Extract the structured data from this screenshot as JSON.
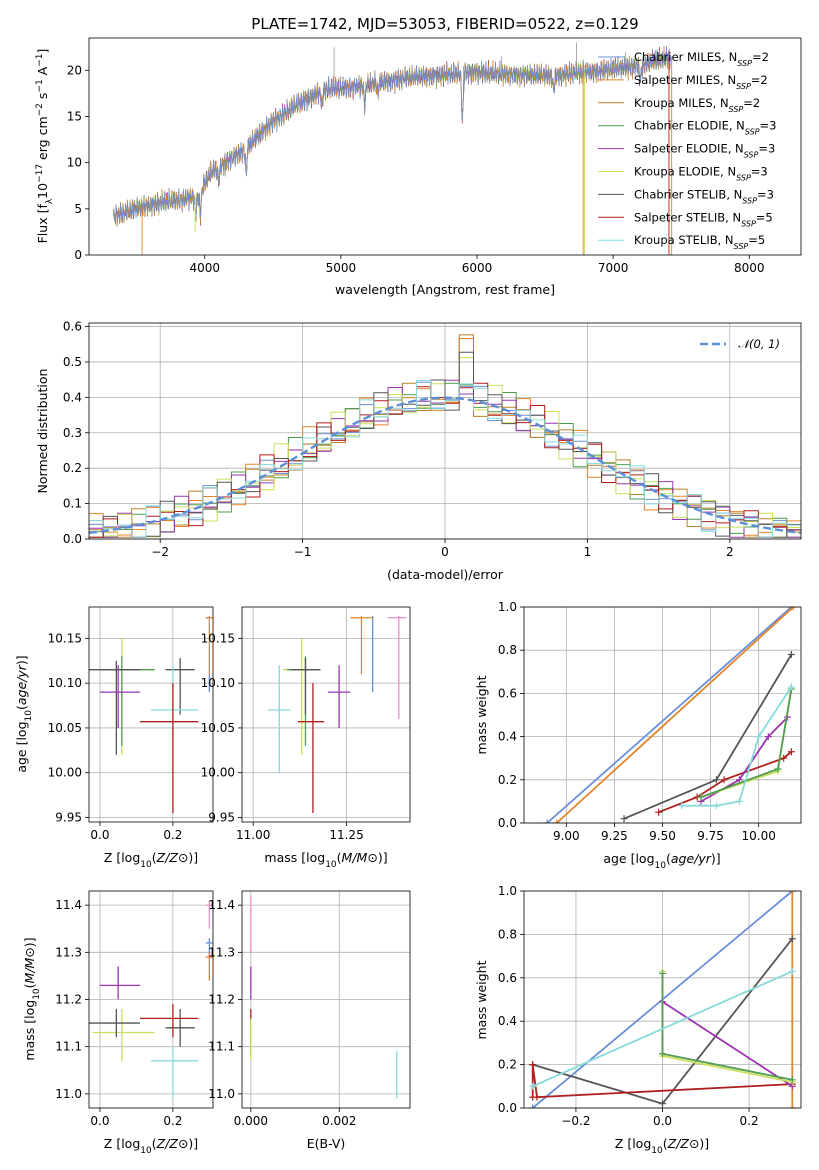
{
  "figure_title": "PLATE=1742, MJD=53053, FIBERID=0522, z=0.129",
  "colors": {
    "Chabrier MILES": "#6a8fd8",
    "Salpeter MILES": "#e4852c",
    "Kroupa MILES": "#b8802a",
    "Chabrier ELODIE": "#4f9c52",
    "Salpeter ELODIE": "#9a35b0",
    "Kroupa ELODIE": "#c8e05a",
    "Chabrier STELIB": "#555555",
    "Salpeter STELIB": "#b01e1e",
    "Kroupa STELIB": "#86dada",
    "normal": "#5b8fd6",
    "pink": "#e890c8"
  },
  "chart_data": [
    {
      "id": "spectrum",
      "type": "line",
      "title": "PLATE=1742, MJD=53053, FIBERID=0522, z=0.129",
      "xlabel": "wavelength [Angstrom, rest frame]",
      "ylabel": "Flux [f_λ 10^-17 erg cm^-2 s^-1 A^-1]",
      "xlim": [
        3150,
        8380
      ],
      "ylim": [
        0,
        23.5
      ],
      "xticks": [
        4000,
        5000,
        6000,
        7000,
        8000
      ],
      "yticks": [
        0,
        5,
        10,
        15,
        20
      ],
      "grid": false,
      "legend_position": "top-right",
      "legend": [
        {
          "base": "Chabrier MILES, N",
          "sub": "SSP",
          "tail": "=2"
        },
        {
          "base": "Salpeter MILES, N",
          "sub": "SSP",
          "tail": "=2"
        },
        {
          "base": "Kroupa MILES, N",
          "sub": "SSP",
          "tail": "=2"
        },
        {
          "base": "Chabrier ELODIE, N",
          "sub": "SSP",
          "tail": "=3"
        },
        {
          "base": "Salpeter ELODIE, N",
          "sub": "SSP",
          "tail": "=3"
        },
        {
          "base": "Kroupa ELODIE, N",
          "sub": "SSP",
          "tail": "=3"
        },
        {
          "base": "Chabrier STELIB, N",
          "sub": "SSP",
          "tail": "=3"
        },
        {
          "base": "Salpeter STELIB, N",
          "sub": "SSP",
          "tail": "=5"
        },
        {
          "base": "Kroupa STELIB, N",
          "sub": "SSP",
          "tail": "=5"
        }
      ],
      "continuum": [
        [
          3330,
          4.2
        ],
        [
          3500,
          5.0
        ],
        [
          3700,
          5.8
        ],
        [
          3850,
          6.0
        ],
        [
          3950,
          6.5
        ],
        [
          4050,
          9.0
        ],
        [
          4300,
          11.5
        ],
        [
          4500,
          14.5
        ],
        [
          4700,
          16.5
        ],
        [
          4900,
          18.0
        ],
        [
          5100,
          18.2
        ],
        [
          5400,
          19.0
        ],
        [
          5700,
          19.5
        ],
        [
          6000,
          19.8
        ],
        [
          6300,
          19.5
        ],
        [
          6600,
          19.5
        ],
        [
          6800,
          19.8
        ],
        [
          7000,
          20.2
        ],
        [
          7200,
          20.5
        ],
        [
          7300,
          21.0
        ],
        [
          7420,
          21.5
        ]
      ],
      "absorption": [
        [
          3934,
          2.0
        ],
        [
          3968,
          2.5
        ],
        [
          4102,
          1.5
        ],
        [
          4304,
          2.5
        ],
        [
          4861,
          1.5
        ],
        [
          5175,
          2.0
        ],
        [
          5270,
          1.0
        ],
        [
          5893,
          5.0
        ],
        [
          6563,
          1.5
        ],
        [
          7200,
          1.5
        ]
      ],
      "emission_spikes": [
        [
          4150,
          8.5
        ],
        [
          4950,
          22.5
        ],
        [
          5900,
          20.5
        ],
        [
          6180,
          21.5
        ],
        [
          6730,
          23.0
        ],
        [
          7090,
          22.0
        ]
      ],
      "model_drops": [
        {
          "model": "Salpeter MILES",
          "x": 3540,
          "to": 0
        },
        {
          "model": "Kroupa ELODIE",
          "x": 3930,
          "to": 2.5
        },
        {
          "model": "Salpeter MILES",
          "x": 6780,
          "to": 0
        },
        {
          "model": "Kroupa ELODIE",
          "x": 6790,
          "to": 0
        },
        {
          "model": "Salpeter STELIB",
          "x": 7410,
          "to": 0
        },
        {
          "model": "Salpeter MILES",
          "x": 7430,
          "to": 0
        }
      ]
    },
    {
      "id": "residuals",
      "type": "histogram",
      "xlabel": "(data-model)/error",
      "ylabel": "Normed distribution",
      "xlim": [
        -2.5,
        2.5
      ],
      "ylim": [
        0,
        0.61
      ],
      "xticks": [
        -2,
        -1,
        0,
        1,
        2
      ],
      "yticks": [
        0.0,
        0.1,
        0.2,
        0.3,
        0.4,
        0.5,
        0.6
      ],
      "grid": true,
      "bin_width": 0.1,
      "legend_position": "top-right",
      "legend_label": "𝒩(0, 1)",
      "series": [
        {
          "name": "Chabrier MILES",
          "jitter": 0.028,
          "phase": 0.3
        },
        {
          "name": "Salpeter MILES",
          "jitter": 0.035,
          "phase": 1.1
        },
        {
          "name": "Kroupa MILES",
          "jitter": 0.03,
          "phase": 2.0
        },
        {
          "name": "Chabrier ELODIE",
          "jitter": 0.032,
          "phase": 2.8
        },
        {
          "name": "Salpeter ELODIE",
          "jitter": 0.03,
          "phase": 3.5
        },
        {
          "name": "Kroupa ELODIE",
          "jitter": 0.036,
          "phase": 4.3
        },
        {
          "name": "Chabrier STELIB",
          "jitter": 0.03,
          "phase": 5.1
        },
        {
          "name": "Salpeter STELIB",
          "jitter": 0.032,
          "phase": 5.9
        },
        {
          "name": "Kroupa STELIB",
          "jitter": 0.03,
          "phase": 6.6
        }
      ]
    },
    {
      "id": "age-vs-Z",
      "type": "errorbar",
      "xlabel": "Z [log10(Z/Z⊙)]",
      "ylabel": "age  [log10(age/yr)]",
      "xlim": [
        -0.03,
        0.31
      ],
      "ylim": [
        9.945,
        10.185
      ],
      "xticks": [
        0.0,
        0.2
      ],
      "yticks": [
        9.95,
        10.0,
        10.05,
        10.1,
        10.15
      ],
      "grid": true,
      "points": [
        {
          "color": "Kroupa ELODIE",
          "x": 0.06,
          "y": 10.115,
          "xlo": 0.0,
          "xhi": 0.15,
          "ylo": 10.02,
          "yhi": 10.15
        },
        {
          "color": "Chabrier ELODIE",
          "x": 0.06,
          "y": 10.115,
          "xlo": 0.0,
          "xhi": 0.15,
          "ylo": 10.03,
          "yhi": 10.13
        },
        {
          "color": "Chabrier STELIB",
          "x": 0.045,
          "y": 10.115,
          "xlo": -0.03,
          "xhi": 0.11,
          "ylo": 10.02,
          "yhi": 10.125
        },
        {
          "color": "Salpeter ELODIE",
          "x": 0.05,
          "y": 10.09,
          "xlo": 0.0,
          "xhi": 0.11,
          "ylo": 10.05,
          "yhi": 10.12
        },
        {
          "color": "Chabrier STELIB",
          "x": 0.22,
          "y": 10.115,
          "xlo": 0.18,
          "xhi": 0.26,
          "ylo": 10.065,
          "yhi": 10.128
        },
        {
          "color": "Kroupa STELIB",
          "x": 0.2,
          "y": 10.07,
          "xlo": 0.14,
          "xhi": 0.27,
          "ylo": 10.0,
          "yhi": 10.12
        },
        {
          "color": "Salpeter STELIB",
          "x": 0.2,
          "y": 10.057,
          "xlo": 0.11,
          "xhi": 0.27,
          "ylo": 9.955,
          "yhi": 10.1
        },
        {
          "color": "Salpeter MILES",
          "x": 0.3,
          "y": 10.173,
          "xlo": 0.29,
          "xhi": 0.31,
          "ylo": 10.11,
          "yhi": 10.175
        },
        {
          "color": "Chabrier MILES",
          "x": 0.3,
          "y": 10.1,
          "xlo": 0.3,
          "xhi": 0.3,
          "ylo": 10.09,
          "yhi": 10.11
        }
      ]
    },
    {
      "id": "age-vs-mass",
      "type": "errorbar",
      "xlabel": "mass [log10(M/M⊙)]",
      "ylabel": "",
      "xlim": [
        10.97,
        11.42
      ],
      "ylim": [
        9.945,
        10.185
      ],
      "xticks": [
        11.0,
        11.25
      ],
      "yticks": [
        9.95,
        10.0,
        10.05,
        10.1,
        10.15
      ],
      "grid": true,
      "points": [
        {
          "color": "Kroupa STELIB",
          "x": 11.07,
          "y": 10.07,
          "xlo": 11.04,
          "xhi": 11.1,
          "ylo": 10.0,
          "yhi": 10.12
        },
        {
          "color": "Kroupa ELODIE",
          "x": 11.13,
          "y": 10.115,
          "xlo": 11.08,
          "xhi": 11.18,
          "ylo": 10.02,
          "yhi": 10.15
        },
        {
          "color": "Chabrier ELODIE",
          "x": 11.14,
          "y": 10.115,
          "xlo": 11.09,
          "xhi": 11.18,
          "ylo": 10.03,
          "yhi": 10.13
        },
        {
          "color": "Chabrier STELIB",
          "x": 11.14,
          "y": 10.115,
          "xlo": 11.1,
          "xhi": 11.18,
          "ylo": 10.065,
          "yhi": 10.128
        },
        {
          "color": "Salpeter STELIB",
          "x": 11.16,
          "y": 10.057,
          "xlo": 11.12,
          "xhi": 11.19,
          "ylo": 9.955,
          "yhi": 10.1
        },
        {
          "color": "Salpeter ELODIE",
          "x": 11.23,
          "y": 10.09,
          "xlo": 11.2,
          "xhi": 11.26,
          "ylo": 10.05,
          "yhi": 10.12
        },
        {
          "color": "Chabrier MILES",
          "x": 11.32,
          "y": 10.173,
          "xlo": 11.32,
          "xhi": 11.32,
          "ylo": 10.09,
          "yhi": 10.175
        },
        {
          "color": "Salpeter MILES",
          "x": 11.29,
          "y": 10.173,
          "xlo": 11.26,
          "xhi": 11.32,
          "ylo": 10.11,
          "yhi": 10.175
        },
        {
          "color": "pink",
          "x": 11.39,
          "y": 10.173,
          "xlo": 11.36,
          "xhi": 11.41,
          "ylo": 10.06,
          "yhi": 10.175
        }
      ]
    },
    {
      "id": "weight-vs-age",
      "type": "line",
      "xlabel": "age  [log10(age/yr)]",
      "ylabel": "mass weight",
      "xlim": [
        8.78,
        10.22
      ],
      "ylim": [
        0.0,
        1.0
      ],
      "xticks": [
        9.0,
        9.25,
        9.5,
        9.75,
        10.0
      ],
      "yticks": [
        0.0,
        0.2,
        0.4,
        0.6,
        0.8,
        1.0
      ],
      "grid": true,
      "series": [
        {
          "name": "Chabrier MILES",
          "points": [
            [
              8.9,
              0.0
            ],
            [
              10.17,
              1.0
            ]
          ]
        },
        {
          "name": "Salpeter MILES",
          "points": [
            [
              8.95,
              0.0
            ],
            [
              10.18,
              1.0
            ]
          ]
        },
        {
          "name": "Chabrier STELIB",
          "points": [
            [
              9.3,
              0.02
            ],
            [
              9.78,
              0.2
            ],
            [
              10.17,
              0.78
            ]
          ]
        },
        {
          "name": "Salpeter STELIB",
          "points": [
            [
              9.48,
              0.05
            ],
            [
              9.68,
              0.12
            ],
            [
              9.82,
              0.2
            ],
            [
              10.13,
              0.3
            ],
            [
              10.17,
              0.33
            ]
          ]
        },
        {
          "name": "Salpeter ELODIE",
          "points": [
            [
              9.7,
              0.1
            ],
            [
              9.9,
              0.2
            ],
            [
              10.05,
              0.4
            ],
            [
              10.15,
              0.49
            ]
          ]
        },
        {
          "name": "Kroupa ELODIE",
          "points": [
            [
              9.7,
              0.12
            ],
            [
              10.1,
              0.24
            ],
            [
              10.17,
              0.63
            ]
          ]
        },
        {
          "name": "Chabrier ELODIE",
          "points": [
            [
              9.7,
              0.12
            ],
            [
              10.1,
              0.25
            ],
            [
              10.17,
              0.62
            ]
          ]
        },
        {
          "name": "Kroupa STELIB",
          "points": [
            [
              9.6,
              0.08
            ],
            [
              9.78,
              0.08
            ],
            [
              9.9,
              0.1
            ],
            [
              10.0,
              0.4
            ],
            [
              10.17,
              0.63
            ]
          ]
        }
      ]
    },
    {
      "id": "mass-vs-Z",
      "type": "errorbar",
      "xlabel": "Z [log10(Z/Z⊙)]",
      "ylabel": "mass [log10(M/M⊙)]",
      "xlim": [
        -0.03,
        0.31
      ],
      "ylim": [
        10.97,
        11.43
      ],
      "xticks": [
        0.0,
        0.2
      ],
      "yticks": [
        11.0,
        11.1,
        11.2,
        11.3,
        11.4
      ],
      "grid": true,
      "points": [
        {
          "color": "Kroupa ELODIE",
          "x": 0.06,
          "y": 11.13,
          "xlo": -0.02,
          "xhi": 0.15,
          "ylo": 11.07,
          "yhi": 11.18
        },
        {
          "color": "Chabrier STELIB",
          "x": 0.045,
          "y": 11.15,
          "xlo": -0.03,
          "xhi": 0.11,
          "ylo": 11.12,
          "yhi": 11.18
        },
        {
          "color": "Salpeter ELODIE",
          "x": 0.05,
          "y": 11.23,
          "xlo": 0.0,
          "xhi": 0.11,
          "ylo": 11.2,
          "yhi": 11.27
        },
        {
          "color": "Chabrier STELIB",
          "x": 0.22,
          "y": 11.14,
          "xlo": 0.18,
          "xhi": 0.26,
          "ylo": 11.1,
          "yhi": 11.18
        },
        {
          "color": "Salpeter STELIB",
          "x": 0.2,
          "y": 11.16,
          "xlo": 0.11,
          "xhi": 0.27,
          "ylo": 11.12,
          "yhi": 11.19
        },
        {
          "color": "Kroupa STELIB",
          "x": 0.2,
          "y": 11.07,
          "xlo": 0.14,
          "xhi": 0.27,
          "ylo": 10.99,
          "yhi": 11.1
        },
        {
          "color": "Chabrier MILES",
          "x": 0.3,
          "y": 11.32,
          "xlo": 0.29,
          "xhi": 0.31,
          "ylo": 11.28,
          "yhi": 11.33
        },
        {
          "color": "Salpeter MILES",
          "x": 0.3,
          "y": 11.29,
          "xlo": 0.29,
          "xhi": 0.31,
          "ylo": 11.24,
          "yhi": 11.3
        },
        {
          "color": "pink",
          "x": 0.3,
          "y": 11.4,
          "xlo": 0.29,
          "xhi": 0.31,
          "ylo": 11.35,
          "yhi": 11.41
        }
      ]
    },
    {
      "id": "mass-vs-EBV",
      "type": "errorbar",
      "xlabel": "E(B-V)",
      "ylabel": "",
      "xlim": [
        -0.0002,
        0.0036
      ],
      "ylim": [
        10.97,
        11.43
      ],
      "xticks": [
        0.0,
        0.002
      ],
      "yticks": [
        11.0,
        11.1,
        11.2,
        11.3,
        11.4
      ],
      "grid": true,
      "points": [
        {
          "color": "pink",
          "x": 0.0,
          "y": 11.4,
          "xlo": 0.0,
          "xhi": 0.0,
          "ylo": 11.3,
          "yhi": 11.42
        },
        {
          "color": "Salpeter ELODIE",
          "x": 0.0,
          "y": 11.23,
          "xlo": 0.0,
          "xhi": 0.0,
          "ylo": 11.2,
          "yhi": 11.27
        },
        {
          "color": "Salpeter STELIB",
          "x": 0.0,
          "y": 11.15,
          "xlo": 0.0,
          "xhi": 0.0,
          "ylo": 11.08,
          "yhi": 11.18
        },
        {
          "color": "Kroupa ELODIE",
          "x": 0.0,
          "y": 11.13,
          "xlo": 0.0,
          "xhi": 0.0,
          "ylo": 11.07,
          "yhi": 11.16
        },
        {
          "color": "Kroupa STELIB",
          "x": 0.0033,
          "y": 11.05,
          "xlo": 0.0033,
          "xhi": 0.0033,
          "ylo": 10.99,
          "yhi": 11.09
        }
      ]
    },
    {
      "id": "weight-vs-Z",
      "type": "line",
      "xlabel": "Z [log10(Z/Z⊙)]",
      "ylabel": "mass weight",
      "xlim": [
        -0.32,
        0.32
      ],
      "ylim": [
        0.0,
        1.0
      ],
      "xticks": [
        -0.2,
        0.0,
        0.2
      ],
      "yticks": [
        0.0,
        0.2,
        0.4,
        0.6,
        0.8,
        1.0
      ],
      "grid": true,
      "series": [
        {
          "name": "Chabrier MILES",
          "points": [
            [
              -0.3,
              0.0
            ],
            [
              0.3,
              1.0
            ]
          ]
        },
        {
          "name": "Salpeter MILES",
          "points": [
            [
              0.3,
              0.0
            ],
            [
              0.3,
              1.0
            ]
          ]
        },
        {
          "name": "Chabrier STELIB",
          "points": [
            [
              -0.3,
              0.2
            ],
            [
              0.0,
              0.02
            ],
            [
              0.3,
              0.78
            ]
          ]
        },
        {
          "name": "Salpeter STELIB",
          "points": [
            [
              -0.3,
              0.05
            ],
            [
              -0.3,
              0.2
            ],
            [
              -0.29,
              0.05
            ],
            [
              0.3,
              0.11
            ]
          ]
        },
        {
          "name": "Salpeter ELODIE",
          "points": [
            [
              0.0,
              0.49
            ],
            [
              0.3,
              0.1
            ]
          ]
        },
        {
          "name": "Kroupa ELODIE",
          "points": [
            [
              0.0,
              0.63
            ],
            [
              0.0,
              0.24
            ],
            [
              0.3,
              0.12
            ]
          ]
        },
        {
          "name": "Chabrier ELODIE",
          "points": [
            [
              0.0,
              0.62
            ],
            [
              0.0,
              0.25
            ],
            [
              0.3,
              0.13
            ]
          ]
        },
        {
          "name": "Kroupa STELIB",
          "points": [
            [
              -0.3,
              0.1
            ],
            [
              0.3,
              0.63
            ]
          ]
        }
      ]
    }
  ]
}
